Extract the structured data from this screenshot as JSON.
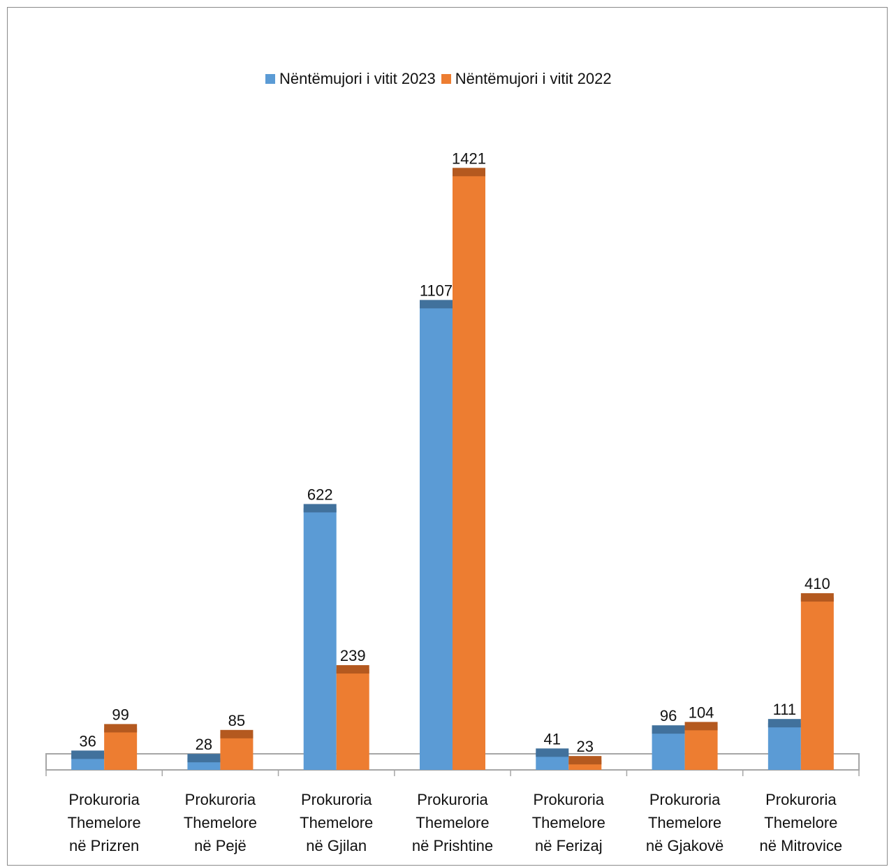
{
  "chart_data": {
    "type": "bar",
    "categories": [
      "Prokuroria Themelore në Prizren",
      "Prokuroria Themelore në Pejë",
      "Prokuroria Themelore në Gjilan",
      "Prokuroria Themelore në Prishtine",
      "Prokuroria Themelore në Ferizaj",
      "Prokuroria Themelore në Gjakovë",
      "Prokuroria Themelore në Mitrovice"
    ],
    "category_lines": [
      [
        "Prokuroria",
        "Themelore",
        "në Prizren"
      ],
      [
        "Prokuroria",
        "Themelore",
        "në Pejë"
      ],
      [
        "Prokuroria",
        "Themelore",
        "në Gjilan"
      ],
      [
        "Prokuroria",
        "Themelore",
        "në Prishtine"
      ],
      [
        "Prokuroria",
        "Themelore",
        "në Ferizaj"
      ],
      [
        "Prokuroria",
        "Themelore",
        "në Gjakovë"
      ],
      [
        "Prokuroria",
        "Themelore",
        "në Mitrovice"
      ]
    ],
    "series": [
      {
        "name": "Nëntëmujori i vitit 2023",
        "color": "#5b9bd5",
        "top_color": "#41719c",
        "values": [
          36,
          28,
          622,
          1107,
          41,
          96,
          111
        ]
      },
      {
        "name": "Nëntëmujori i vitit 2022",
        "color": "#ed7d31",
        "top_color": "#b4591f",
        "values": [
          99,
          85,
          239,
          1421,
          23,
          104,
          410
        ]
      }
    ],
    "ylim": [
      0,
      1500
    ],
    "grid": false,
    "legend_position": "top",
    "data_labels": true
  }
}
